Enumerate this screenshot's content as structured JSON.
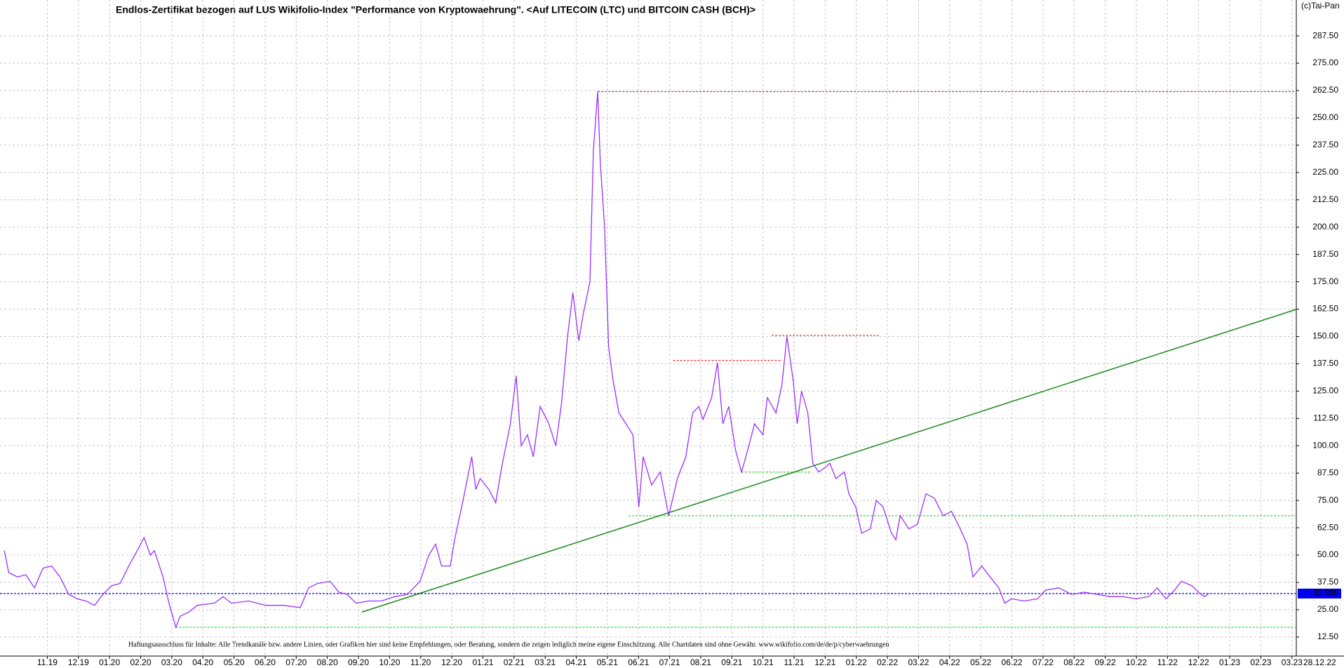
{
  "chart_data": {
    "type": "line",
    "title": "Endlos-Zertifikat bezogen auf LUS Wikifolio-Index \"Performance von Kryptowaehrung\". <Auf LITECOIN (LTC) und BITCOIN CASH (BCH)>",
    "annotation": "Haftungsausschluss für Inhalte: Alle Trendkanäle bzw. andere Linien, oder Grafiken hier sind keine Empfehlungen, oder Beratung, sondern die zeigen lediglich meine eigene Einschätzung. Alle Chartdaten sind ohne Gewähr.  www.wikifolio.com/de/de/p/cyberwaehrungen",
    "copyright": "(c)Tai-Pan",
    "last_date": "28.12.22",
    "xlim": [
      -1.52,
      40.14
    ],
    "xticks": [
      {
        "value": 0,
        "label": "11.19"
      },
      {
        "value": 1,
        "label": "12.19"
      },
      {
        "value": 2,
        "label": "01.20"
      },
      {
        "value": 3,
        "label": "02.20"
      },
      {
        "value": 4,
        "label": "03.20"
      },
      {
        "value": 5,
        "label": "04.20"
      },
      {
        "value": 6,
        "label": "05.20"
      },
      {
        "value": 7,
        "label": "06.20"
      },
      {
        "value": 8,
        "label": "07.20"
      },
      {
        "value": 9,
        "label": "08.20"
      },
      {
        "value": 10,
        "label": "09.20"
      },
      {
        "value": 11,
        "label": "10.20"
      },
      {
        "value": 12,
        "label": "11.20"
      },
      {
        "value": 13,
        "label": "12.20"
      },
      {
        "value": 14,
        "label": "01.21"
      },
      {
        "value": 15,
        "label": "02.21"
      },
      {
        "value": 16,
        "label": "03.21"
      },
      {
        "value": 17,
        "label": "04.21"
      },
      {
        "value": 18,
        "label": "05.21"
      },
      {
        "value": 19,
        "label": "06.21"
      },
      {
        "value": 20,
        "label": "07.21"
      },
      {
        "value": 21,
        "label": "08.21"
      },
      {
        "value": 22,
        "label": "09.21"
      },
      {
        "value": 23,
        "label": "10.21"
      },
      {
        "value": 24,
        "label": "11.21"
      },
      {
        "value": 25,
        "label": "12.21"
      },
      {
        "value": 26,
        "label": "01.22"
      },
      {
        "value": 27,
        "label": "02.22"
      },
      {
        "value": 28,
        "label": "03.22"
      },
      {
        "value": 29,
        "label": "04.22"
      },
      {
        "value": 30,
        "label": "05.22"
      },
      {
        "value": 31,
        "label": "06.22"
      },
      {
        "value": 32,
        "label": "07.22"
      },
      {
        "value": 33,
        "label": "08.22"
      },
      {
        "value": 34,
        "label": "09.22"
      },
      {
        "value": 35,
        "label": "10.22"
      },
      {
        "value": 36,
        "label": "11.22"
      },
      {
        "value": 37,
        "label": "12.22"
      },
      {
        "value": 38,
        "label": "01.23"
      },
      {
        "value": 39,
        "label": "02.23"
      },
      {
        "value": 40,
        "label": "03.23"
      }
    ],
    "ylim": [
      3.8,
      303.9
    ],
    "yticks": [
      {
        "value": 12.5,
        "label": "12.50"
      },
      {
        "value": 25,
        "label": "25.00"
      },
      {
        "value": 37.5,
        "label": "37.50"
      },
      {
        "value": 50,
        "label": "50.00"
      },
      {
        "value": 62.5,
        "label": "62.50"
      },
      {
        "value": 75,
        "label": "75.00"
      },
      {
        "value": 87.5,
        "label": "87.50"
      },
      {
        "value": 100,
        "label": "100.00"
      },
      {
        "value": 112.5,
        "label": "112.50"
      },
      {
        "value": 125,
        "label": "125.00"
      },
      {
        "value": 137.5,
        "label": "137.50"
      },
      {
        "value": 150,
        "label": "150.00"
      },
      {
        "value": 162.5,
        "label": "162.50"
      },
      {
        "value": 175,
        "label": "175.00"
      },
      {
        "value": 187.5,
        "label": "187.50"
      },
      {
        "value": 200,
        "label": "200.00"
      },
      {
        "value": 212.5,
        "label": "212.50"
      },
      {
        "value": 225,
        "label": "225.00"
      },
      {
        "value": 237.5,
        "label": "237.50"
      },
      {
        "value": 250,
        "label": "250.00"
      },
      {
        "value": 262.5,
        "label": "262.50"
      },
      {
        "value": 275,
        "label": "275.00"
      },
      {
        "value": 287.5,
        "label": "287.50"
      }
    ],
    "grid": true,
    "x": [
      -1.38,
      -1.24,
      -0.96,
      -0.69,
      -0.41,
      -0.14,
      0.14,
      0.41,
      0.69,
      0.96,
      1.24,
      1.52,
      1.79,
      2.07,
      2.34,
      2.62,
      2.89,
      3.11,
      3.31,
      3.44,
      3.72,
      3.91,
      4.13,
      4.27,
      4.55,
      4.82,
      5.37,
      5.65,
      5.92,
      6.47,
      7.02,
      7.58,
      8.13,
      8.4,
      8.68,
      9.09,
      9.37,
      9.64,
      9.92,
      10.33,
      10.74,
      11.16,
      11.57,
      11.98,
      12.26,
      12.48,
      12.67,
      12.95,
      13.09,
      13.36,
      13.64,
      13.77,
      13.91,
      14.19,
      14.41,
      14.6,
      14.88,
      15.07,
      15.23,
      15.43,
      15.62,
      15.84,
      16.12,
      16.34,
      16.53,
      16.72,
      16.89,
      17.08,
      17.22,
      17.44,
      17.55,
      17.69,
      17.77,
      17.91,
      18.04,
      18.18,
      18.37,
      18.6,
      18.82,
      19.01,
      19.15,
      19.42,
      19.7,
      19.97,
      20.25,
      20.52,
      20.74,
      20.94,
      21.07,
      21.35,
      21.54,
      21.71,
      21.9,
      22.12,
      22.31,
      22.45,
      22.73,
      23.0,
      23.14,
      23.42,
      23.61,
      23.77,
      23.97,
      24.1,
      24.24,
      24.44,
      24.6,
      24.79,
      24.99,
      25.15,
      25.34,
      25.62,
      25.76,
      25.98,
      26.17,
      26.45,
      26.64,
      26.86,
      27.13,
      27.27,
      27.41,
      27.69,
      27.96,
      28.24,
      28.51,
      28.79,
      29.06,
      29.34,
      29.56,
      29.75,
      30.03,
      30.3,
      30.58,
      30.77,
      30.99,
      31.4,
      31.82,
      32.09,
      32.51,
      32.92,
      33.33,
      33.75,
      34.16,
      34.57,
      34.99,
      35.4,
      35.67,
      35.95,
      36.23,
      36.45,
      36.78,
      37.0,
      37.19,
      37.33
    ],
    "series": [
      {
        "color": "#9b30ff",
        "values": [
          52,
          42,
          40,
          41,
          35,
          44,
          45,
          40,
          32,
          30,
          29,
          27,
          32,
          36,
          37,
          45,
          52,
          58,
          50,
          52,
          40,
          28,
          17,
          22,
          24,
          27,
          28,
          31,
          28,
          29,
          27,
          27,
          26,
          35,
          37,
          38,
          33,
          32,
          28,
          29,
          29,
          31,
          32,
          38,
          50,
          55,
          45,
          45,
          57,
          75,
          95,
          80,
          85,
          80,
          74,
          90,
          110,
          132,
          100,
          105,
          95,
          118,
          110,
          100,
          120,
          150,
          170,
          148,
          160,
          175,
          235,
          262,
          230,
          200,
          145,
          130,
          115,
          110,
          105,
          72,
          95,
          82,
          88,
          68,
          85,
          95,
          115,
          118,
          112,
          122,
          138,
          110,
          118,
          98,
          88,
          95,
          110,
          105,
          122,
          115,
          128,
          150,
          130,
          110,
          125,
          115,
          92,
          88,
          90,
          92,
          85,
          88,
          78,
          72,
          60,
          62,
          75,
          72,
          60,
          57,
          68,
          62,
          64,
          78,
          76,
          68,
          70,
          62,
          55,
          40,
          45,
          40,
          35,
          28,
          30,
          29,
          30,
          34,
          35,
          32,
          33,
          32,
          31,
          31,
          30,
          31,
          35,
          30,
          34,
          38,
          36,
          33,
          31,
          32.395
        ]
      }
    ],
    "reference_lines": [
      {
        "value": 262,
        "from": 17.69,
        "to": 40.14,
        "color": "#e03030"
      },
      {
        "value": 139,
        "from": 20.11,
        "to": 23.61,
        "color": "#e03030"
      },
      {
        "value": 150.5,
        "from": 23.28,
        "to": 26.72,
        "color": "#e03030"
      },
      {
        "value": 88,
        "from": 22.31,
        "to": 24.52,
        "color": "#33dd33"
      },
      {
        "value": 68,
        "from": 18.68,
        "to": 40.14,
        "color": "#33dd33"
      },
      {
        "value": 17,
        "from": 4.13,
        "to": 40.14,
        "color": "#33dd33"
      }
    ],
    "trendline": {
      "x": [
        10.11,
        40.14
      ],
      "y": [
        23.9,
        162.4
      ],
      "color": "#1a8a1a"
    },
    "last_value": {
      "value": 32.395,
      "color": "#0000ee"
    }
  }
}
